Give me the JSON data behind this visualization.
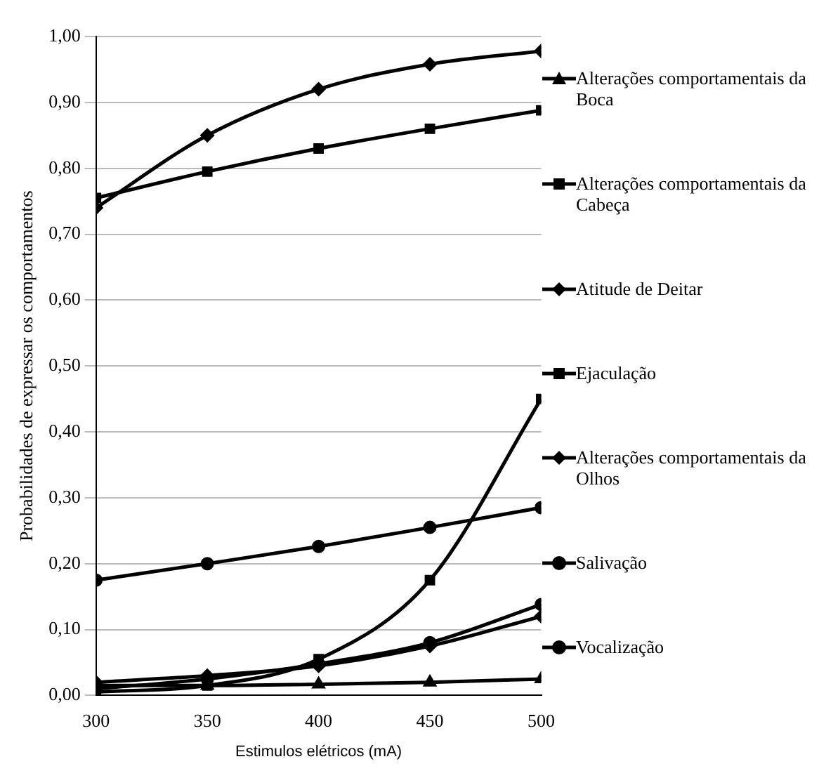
{
  "chart_data": {
    "type": "line",
    "xlabel": "Estimulos elétricos (mA)",
    "ylabel": "Probabilidades de expressar os comportamentos",
    "x": [
      300,
      350,
      400,
      450,
      500
    ],
    "xlim": [
      300,
      500
    ],
    "xticks": [
      300,
      350,
      400,
      450,
      500
    ],
    "ylim": [
      0,
      1
    ],
    "yticks": [
      {
        "value": 0,
        "label": "0,00"
      },
      {
        "value": 0.1,
        "label": "0,10"
      },
      {
        "value": 0.2,
        "label": "0,20"
      },
      {
        "value": 0.3,
        "label": "0,30"
      },
      {
        "value": 0.4,
        "label": "0,40"
      },
      {
        "value": 0.5,
        "label": "0,50"
      },
      {
        "value": 0.6,
        "label": "0,60"
      },
      {
        "value": 0.7,
        "label": "0,70"
      },
      {
        "value": 0.8,
        "label": "0,80"
      },
      {
        "value": 0.9,
        "label": "0,90"
      },
      {
        "value": 1,
        "label": "1,00"
      }
    ],
    "grid": "y",
    "legend": "right",
    "series": [
      {
        "name": "Alterações comportamentais da Boca",
        "color": "#000000",
        "marker": "triangle",
        "values": [
          0.015,
          0.015,
          0.017,
          0.02,
          0.025
        ]
      },
      {
        "name": "Alterações comportamentais da Cabeça",
        "color": "#000000",
        "marker": "square",
        "values": [
          0.755,
          0.795,
          0.83,
          0.86,
          0.888
        ]
      },
      {
        "name": "Atitude de Deitar",
        "color": "#000000",
        "marker": "diamond",
        "values": [
          0.02,
          0.03,
          0.045,
          0.075,
          0.12
        ]
      },
      {
        "name": "Ejaculação",
        "color": "#000000",
        "marker": "square",
        "values": [
          0.005,
          0.015,
          0.055,
          0.175,
          0.45
        ]
      },
      {
        "name": "Alterações comportamentais da Olhos",
        "color": "#000000",
        "marker": "diamond",
        "values": [
          0.74,
          0.85,
          0.92,
          0.958,
          0.978
        ]
      },
      {
        "name": "Salivação",
        "color": "#000000",
        "marker": "circle",
        "values": [
          0.175,
          0.2,
          0.226,
          0.255,
          0.285
        ]
      },
      {
        "name": "Vocalização",
        "color": "#000000",
        "marker": "circle",
        "values": [
          0.01,
          0.025,
          0.048,
          0.08,
          0.138
        ]
      }
    ]
  }
}
